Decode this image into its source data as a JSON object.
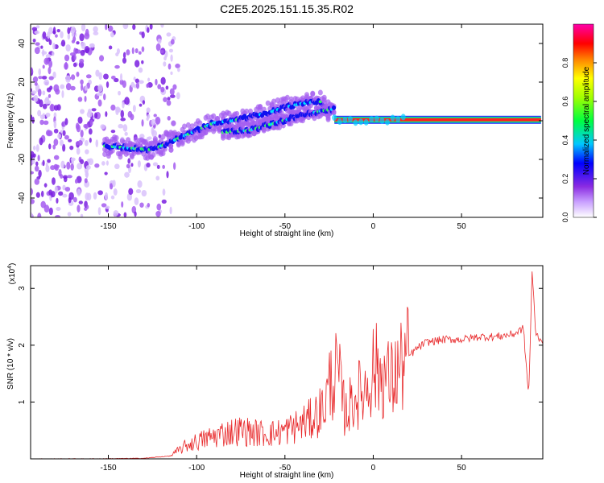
{
  "figure_title": "C2E5.2025.151.15.35.R02",
  "chart_data": [
    {
      "type": "heatmap",
      "title": "C2E5.2025.151.15.35.R02",
      "xlabel": "Height of straight line (km)",
      "ylabel": "Frequency (Hz)",
      "xlim": [
        -194,
        96
      ],
      "ylim": [
        -50,
        50
      ],
      "xticks": [
        -150,
        -100,
        -50,
        0,
        50
      ],
      "yticks": [
        -40,
        -20,
        0,
        20,
        40
      ],
      "colorbar": {
        "label": "Normalized spectral amplitude",
        "range": [
          0,
          1
        ],
        "ticks": [
          0.0,
          0.2,
          0.4,
          0.6,
          0.8
        ],
        "colors": [
          "#ffffff",
          "#9b30ff",
          "#0000ff",
          "#00ffff",
          "#00ff00",
          "#ffff00",
          "#ff8000",
          "#ff0000",
          "#ff00aa"
        ]
      },
      "ridge": [
        {
          "x": -152,
          "y": -13
        },
        {
          "x": -140,
          "y": -14
        },
        {
          "x": -125,
          "y": -15
        },
        {
          "x": -110,
          "y": -9
        },
        {
          "x": -100,
          "y": -5
        },
        {
          "x": -90,
          "y": -1
        },
        {
          "x": -80,
          "y": 0
        },
        {
          "x": -70,
          "y": 2
        },
        {
          "x": -60,
          "y": 4
        },
        {
          "x": -50,
          "y": 7
        },
        {
          "x": -40,
          "y": 9
        },
        {
          "x": -30,
          "y": 10
        },
        {
          "x": -22,
          "y": 1
        },
        {
          "x": 0,
          "y": 1
        },
        {
          "x": 95,
          "y": 1
        }
      ],
      "ridge_secondary": [
        {
          "x": -85,
          "y": -6
        },
        {
          "x": -70,
          "y": -5
        },
        {
          "x": -55,
          "y": -1
        },
        {
          "x": -40,
          "y": 3
        },
        {
          "x": -30,
          "y": 5
        },
        {
          "x": -22,
          "y": 6
        }
      ],
      "noise_region_x": [
        -194,
        -120
      ],
      "strong_band_x": [
        -22,
        95
      ],
      "strong_band_y": 0.5
    },
    {
      "type": "line",
      "xlabel": "Height of straight line (km)",
      "ylabel": "SNR (10 * v/v)",
      "yscale_label": "(x10",
      "yscale_exp": "4",
      "yscale_close": ")",
      "xlim": [
        -194,
        96
      ],
      "ylim": [
        0,
        3.4
      ],
      "xticks": [
        -150,
        -100,
        -50,
        0,
        50
      ],
      "yticks": [
        1,
        2,
        3
      ],
      "series_color": "#e8282a",
      "x": [
        -194,
        -160,
        -130,
        -115,
        -105,
        -95,
        -85,
        -75,
        -65,
        -55,
        -45,
        -35,
        -28,
        -24,
        -20,
        -16,
        -10,
        -5,
        0,
        5,
        10,
        15,
        20,
        25,
        30,
        40,
        50,
        60,
        70,
        80,
        85,
        88,
        90,
        92,
        95
      ],
      "y": [
        0,
        0,
        0.01,
        0.05,
        0.25,
        0.35,
        0.45,
        0.5,
        0.45,
        0.45,
        0.55,
        0.7,
        0.9,
        1.4,
        1.5,
        0.8,
        1.1,
        1.2,
        1.6,
        1.5,
        1.35,
        1.6,
        1.8,
        1.95,
        2.05,
        2.1,
        2.1,
        2.15,
        2.15,
        2.2,
        2.3,
        1.1,
        3.3,
        2.2,
        2.1
      ]
    }
  ]
}
